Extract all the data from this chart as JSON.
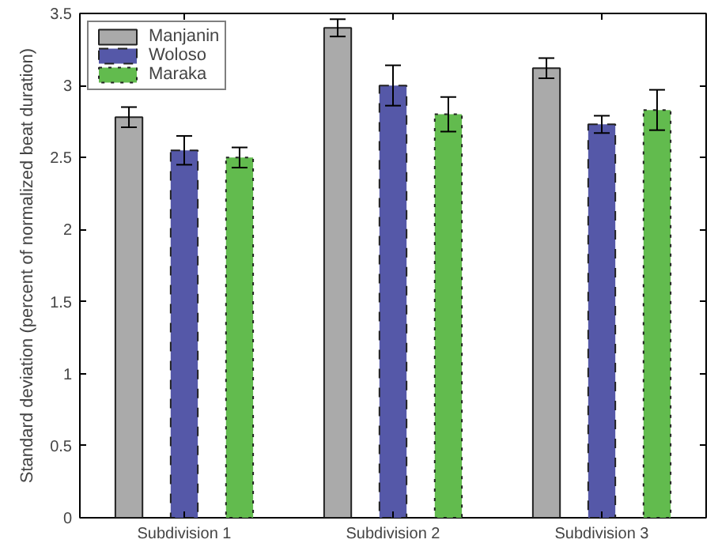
{
  "chart_data": {
    "type": "bar",
    "ylabel": "Standard deviation (percent of normalized beat duration)",
    "categories": [
      "Subdivision 1",
      "Subdivision 2",
      "Subdivision 3"
    ],
    "series": [
      {
        "name": "Manjanin",
        "color": "#aaaaaa",
        "line_style": "solid",
        "values": [
          2.78,
          3.4,
          3.12
        ],
        "errors": [
          0.07,
          0.06,
          0.07
        ]
      },
      {
        "name": "Woloso",
        "color": "#5558a8",
        "line_style": "dashed",
        "values": [
          2.55,
          3.0,
          2.73
        ],
        "errors": [
          0.1,
          0.14,
          0.06
        ]
      },
      {
        "name": "Maraka",
        "color": "#62bb4e",
        "line_style": "dotted",
        "values": [
          2.5,
          2.8,
          2.83
        ],
        "errors": [
          0.07,
          0.12,
          0.14
        ]
      }
    ],
    "ylim": [
      0,
      3.5
    ],
    "yticks": [
      0,
      0.5,
      1,
      1.5,
      2,
      2.5,
      3,
      3.5
    ],
    "grid": false,
    "legend": "top left"
  }
}
